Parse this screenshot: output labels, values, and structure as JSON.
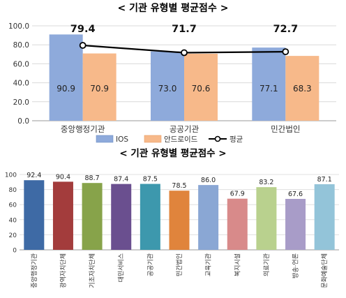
{
  "chart_data": [
    {
      "type": "bar",
      "title": "< 기관 유형별 평균점수 >",
      "categories": [
        "중앙행정기관",
        "공공기관",
        "민간법인"
      ],
      "ylim": [
        0,
        100
      ],
      "yticks": [
        "0.0",
        "20.0",
        "40.0",
        "60.0",
        "80.0",
        "100.0"
      ],
      "grid": true,
      "legend_position": "bottom",
      "series": [
        {
          "name": "IOS",
          "values": [
            90.9,
            73.0,
            77.1
          ],
          "labels": [
            "90.9",
            "73.0",
            "77.1"
          ],
          "color": "#8eaadb"
        },
        {
          "name": "안드로이드",
          "values": [
            70.9,
            70.6,
            68.3
          ],
          "labels": [
            "70.9",
            "70.6",
            "68.3"
          ],
          "color": "#f7b98a"
        }
      ],
      "line_series": {
        "name": "평균",
        "values": [
          79.4,
          71.7,
          72.7
        ],
        "labels": [
          "79.4",
          "71.7",
          "72.7"
        ],
        "color": "#000000"
      }
    },
    {
      "type": "bar",
      "title": "< 기관 유형별 평균점수 >",
      "categories": [
        "중앙행정기관",
        "광역자치단체",
        "기초자치단체",
        "대민서비스",
        "공공기관",
        "민간법인",
        "교육기관",
        "복지시설",
        "의료기관",
        "방송·언론",
        "문화예술단체"
      ],
      "values": [
        92.4,
        90.4,
        88.7,
        87.4,
        87.5,
        78.5,
        86.0,
        67.9,
        83.2,
        67.6,
        87.1
      ],
      "value_labels": [
        "92.4",
        "90.4",
        "88.7",
        "87.4",
        "87.5",
        "78.5",
        "86.0",
        "67.9",
        "83.2",
        "67.6",
        "87.1"
      ],
      "colors": [
        "#3e6aa5",
        "#a33c3c",
        "#87a34a",
        "#6a4f8f",
        "#3d98ad",
        "#e0843c",
        "#8aa7d4",
        "#d88a8a",
        "#b9d18e",
        "#a89cc8",
        "#93c4d9"
      ],
      "ylim": [
        0,
        100
      ],
      "yticks": [
        "0",
        "20",
        "40",
        "60",
        "80",
        "100"
      ],
      "grid": true
    }
  ]
}
